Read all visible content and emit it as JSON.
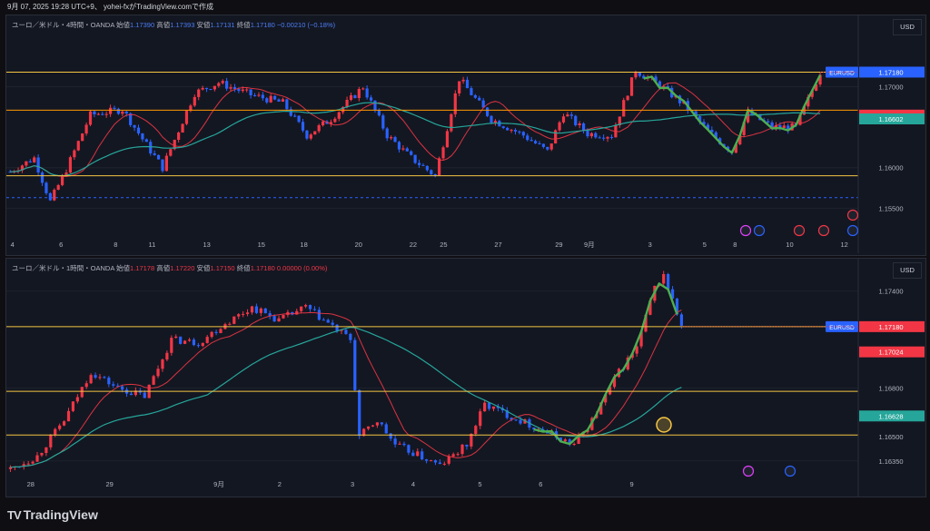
{
  "header": {
    "text": "9月 07, 2025 19:28 UTC+9、 yohei-fxがTradingView.comで作成"
  },
  "footer": {
    "brand": "TradingView"
  },
  "colors": {
    "up": "#f23645",
    "down": "#2962ff",
    "hline": "#f5c542",
    "hline_orange": "#ff9800",
    "ma_fast": "#f23645",
    "ma_slow": "#26a69a",
    "green": "#4caf50",
    "accent": "#2962ff"
  },
  "panels": [
    {
      "legend": {
        "title": "ユーロ／米ドル・4時間・OANDA",
        "open_label": "始値",
        "open": "1.17390",
        "high_label": "高値",
        "high": "1.17393",
        "low_label": "安値",
        "low": "1.17131",
        "close_label": "終値",
        "close": "1.17180",
        "change": "−0.00210 (−0.18%)"
      },
      "currency": "USD",
      "price_labels": [
        {
          "text": "EURUSD",
          "value": 1.1718,
          "kind": "symbol"
        },
        {
          "text": "1.17180",
          "value": 1.1718,
          "kind": "price",
          "color": "#2962ff"
        },
        {
          "text": "1.16649",
          "value": 1.16649,
          "kind": "price",
          "color": "#f23645"
        },
        {
          "text": "1.16602",
          "value": 1.16602,
          "kind": "price",
          "color": "#26a69a"
        }
      ],
      "y_ticks": [
        "1.17000",
        "1.16000",
        "1.15500"
      ],
      "y_tick_values": [
        1.17,
        1.16,
        1.155
      ],
      "x_ticks": [
        "4",
        "6",
        "8",
        "11",
        "13",
        "15",
        "18",
        "20",
        "22",
        "25",
        "27",
        "29",
        "9月",
        "3",
        "5",
        "8",
        "10",
        "12"
      ]
    },
    {
      "legend": {
        "title": "ユーロ／米ドル・1時間・OANDA",
        "open_label": "始値",
        "open": "1.17178",
        "high_label": "高値",
        "high": "1.17220",
        "low_label": "安値",
        "low": "1.17150",
        "close_label": "終値",
        "close": "1.17180",
        "change": "0.00000 (0.00%)"
      },
      "currency": "USD",
      "price_labels": [
        {
          "text": "EURUSD",
          "value": 1.1718,
          "kind": "symbol"
        },
        {
          "text": "1.17180",
          "value": 1.1718,
          "kind": "price",
          "color": "#f23645"
        },
        {
          "text": "1.17024",
          "value": 1.17024,
          "kind": "price",
          "color": "#f23645"
        },
        {
          "text": "1.16628",
          "value": 1.16628,
          "kind": "price",
          "color": "#26a69a"
        }
      ],
      "y_ticks": [
        "1.17400",
        "1.16800",
        "1.16500",
        "1.16350"
      ],
      "y_tick_values": [
        1.174,
        1.168,
        1.165,
        1.1635
      ],
      "x_ticks": [
        "28",
        "29",
        "9月",
        "2",
        "3",
        "4",
        "5",
        "6",
        "9"
      ]
    }
  ],
  "chart_data": [
    {
      "type": "candlestick",
      "title": "ユーロ／米ドル・4時間・OANDA",
      "ylim": [
        1.151,
        1.1788
      ],
      "hlines": [
        1.1718,
        1.1671,
        1.159,
        1.1563
      ],
      "xlim": [
        0,
        130
      ],
      "x_tick_positions": [
        1,
        9,
        18,
        24,
        33,
        42,
        49,
        58,
        67,
        72,
        81,
        91,
        96,
        106,
        115,
        120,
        129,
        138
      ],
      "last_price": 1.1718,
      "ma_fast_last": 1.16649,
      "ma_slow_last": 1.16602
    },
    {
      "type": "candlestick",
      "title": "ユーロ／米ドル・1時間・OANDA",
      "ylim": [
        1.1622,
        1.176
      ],
      "hlines": [
        1.1718,
        1.1678,
        1.1651
      ],
      "xlim": [
        0,
        130
      ],
      "x_tick_positions": [
        4,
        17,
        35,
        45,
        57,
        67,
        78,
        88,
        103
      ],
      "last_price": 1.1718,
      "ma_fast_last": 1.17024,
      "ma_slow_last": 1.16628
    }
  ]
}
